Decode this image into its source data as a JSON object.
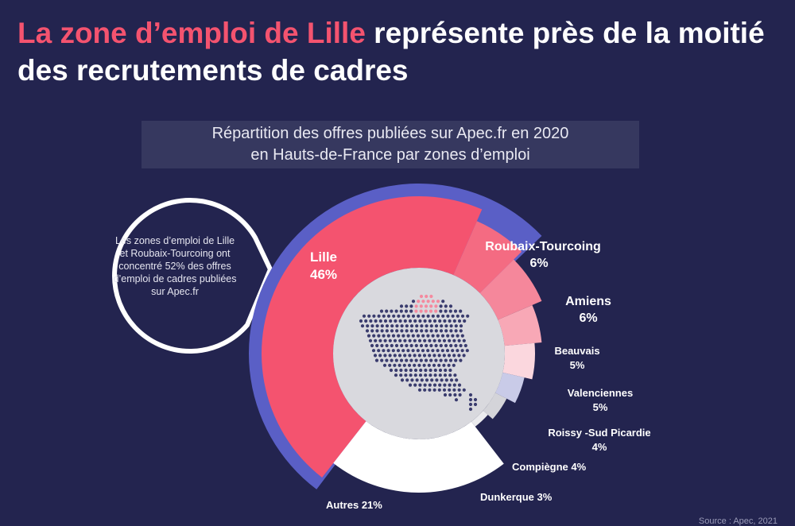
{
  "headline": {
    "accent": "La zone d’emploi de Lille",
    "rest": " représente près de la moitié des recrutements de cadres"
  },
  "subtitle": {
    "line1": "Répartition des offres publiées sur Apec.fr en 2020",
    "line2": "en Hauts-de-France par zones d’emploi"
  },
  "bubble": {
    "text": "Les zones d’emploi de Lille et Roubaix-Tourcoing ont concentré 52% des offres d’emploi de cadres publiées sur Apec.fr"
  },
  "source": "Source : Apec, 2021",
  "colors": {
    "background": "#23244f",
    "accent": "#f4536f",
    "highlight_band": "#5a5fc6",
    "map_dots": "#3a3c6e",
    "map_region": "#f48a9f",
    "map_disc": "#d9d9de"
  },
  "chart_data": {
    "type": "pie",
    "title": "Répartition des offres publiées sur Apec.fr en 2020 en Hauts-de-France par zones d’emploi",
    "unit": "%",
    "highlighted": [
      "Lille",
      "Roubaix-Tourcoing"
    ],
    "slices": [
      {
        "label": "Lille",
        "value": 46,
        "value_label": "46%",
        "color": "#f4536f"
      },
      {
        "label": "Roubaix-Tourcoing",
        "value": 6,
        "value_label": "6%",
        "color": "#f46b82"
      },
      {
        "label": "Amiens",
        "value": 6,
        "value_label": "6%",
        "color": "#f5879b"
      },
      {
        "label": "Beauvais",
        "value": 5,
        "value_label": "5%",
        "color": "#f8a8b6"
      },
      {
        "label": "Valenciennes",
        "value": 5,
        "value_label": "5%",
        "color": "#fbd7de"
      },
      {
        "label": "Roissy -Sud Picardie",
        "value": 4,
        "value_label": "4%",
        "color": "#c9cbe8"
      },
      {
        "label": "Compiègne",
        "value": 4,
        "value_label": "4%",
        "color": "#d4d4d9"
      },
      {
        "label": "Dunkerque",
        "value": 3,
        "value_label": "3%",
        "color": "#ebebee"
      },
      {
        "label": "Autres",
        "value": 21,
        "value_label": "21%",
        "color": "#ffffff"
      }
    ]
  }
}
